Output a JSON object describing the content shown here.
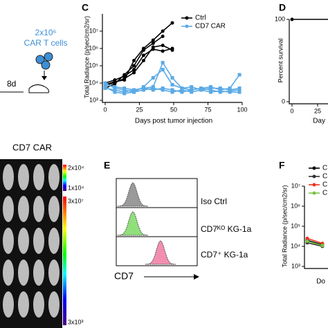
{
  "panel_labels": [
    "C",
    "D",
    "E",
    "F"
  ],
  "schematic": {
    "dose": "2x10⁶",
    "cells": "CAR T cells",
    "days": "8d"
  },
  "imaging": {
    "title": "CD7 CAR",
    "scale_top": [
      "2x10⁴",
      "1x10⁴"
    ],
    "scale_bottom": [
      "3x10⁷",
      "3x10³"
    ]
  },
  "flow": {
    "samples": [
      {
        "name": "Iso Ctrl",
        "color": "#9a9a9a"
      },
      {
        "name": "CD7ᴷᴼ KG-1a",
        "color": "#8fe07a"
      },
      {
        "name": "CD7⁺ KG-1a",
        "color": "#f28fb0"
      }
    ],
    "axis_label": "CD7"
  },
  "chart_data": [
    {
      "type": "line",
      "xlabel": "Days post tumor injection",
      "ylabel": "Total Radiance (p/sec/cm2/sr)",
      "log": true,
      "legend": "upper right",
      "x": [
        0,
        7,
        14,
        21,
        28,
        35,
        42,
        49,
        56,
        63,
        70,
        77,
        84,
        91,
        98
      ],
      "xlim": [
        0,
        100
      ],
      "xticks": [
        0,
        25,
        50,
        75,
        100
      ],
      "ylim": [
        1000,
        100000000
      ],
      "yticks": [
        {
          "value": 1000,
          "label": "10³"
        },
        {
          "value": 10000,
          "label": "10⁴"
        },
        {
          "value": 100000,
          "label": "10⁵"
        },
        {
          "value": 1000000,
          "label": "10⁶"
        },
        {
          "value": 10000000,
          "label": "10⁷"
        }
      ],
      "series": [
        {
          "name": "Ctrl",
          "color": "#000000",
          "values": [
            [
              8000,
              12000,
              15000,
              200000,
              1000000,
              3000000,
              10000000,
              30000000,
              null,
              null,
              null,
              null,
              null,
              null,
              null
            ],
            [
              5000,
              9000,
              30000,
              100000,
              800000,
              2000000,
              5000000,
              null,
              null,
              null,
              null,
              null,
              null,
              null,
              null
            ],
            [
              10000,
              15000,
              25000,
              60000,
              400000,
              900000,
              700000,
              1000000,
              null,
              null,
              null,
              null,
              null,
              null,
              null
            ],
            [
              7000,
              11000,
              18000,
              40000,
              200000,
              1200000,
              1500000,
              800000,
              null,
              null,
              null,
              null,
              null,
              null,
              null
            ]
          ]
        },
        {
          "name": "CD7 CAR",
          "color": "#5aaae6",
          "values": [
            [
              8000,
              6000,
              5000,
              4000,
              5000,
              6000,
              150000,
              20000,
              5000,
              4000,
              5000,
              6000,
              4000,
              5000,
              30000
            ],
            [
              5000,
              4000,
              3000,
              4000,
              5000,
              4000,
              5000,
              4000,
              3000,
              4000,
              5000,
              4000,
              3000,
              3500,
              4000
            ],
            [
              10000,
              5000,
              4000,
              3000,
              6000,
              20000,
              60000,
              8000,
              5000,
              6000,
              4000,
              5000,
              5000,
              4000,
              5000
            ],
            [
              6000,
              3000,
              2500,
              3000,
              4000,
              5000,
              4000,
              3000,
              4000,
              3000,
              4000,
              3000,
              3500,
              3000,
              3000
            ]
          ]
        }
      ]
    },
    {
      "type": "line",
      "xlabel": "Day",
      "ylabel": "Percent survival",
      "x": [
        0,
        100
      ],
      "xlim": [
        0,
        100
      ],
      "xticks": [
        0,
        25
      ],
      "ylim": [
        0,
        100
      ],
      "yticks": [
        0,
        100
      ],
      "series": [
        {
          "color": "#000000",
          "values": [
            100,
            100
          ]
        }
      ]
    },
    {
      "type": "line",
      "xlabel": "Do",
      "ylabel": "Total Radiance (p/sec/cm2/sr)",
      "log": true,
      "legend": "upper left",
      "x": [
        0,
        7
      ],
      "xlim": [
        0,
        50
      ],
      "ylim": [
        1000,
        10000000
      ],
      "yticks": [
        {
          "value": 1000,
          "label": "10³"
        },
        {
          "value": 10000,
          "label": "10⁴"
        },
        {
          "value": 100000,
          "label": "10⁵"
        },
        {
          "value": 1000000,
          "label": "10⁶"
        },
        {
          "value": 10000000,
          "label": "10⁷"
        }
      ],
      "series": [
        {
          "name": "CD",
          "color": "#000000",
          "values": [
            20000,
            12000
          ]
        },
        {
          "name": "CD",
          "color": "#333333",
          "values": [
            15000,
            10000
          ]
        },
        {
          "name": "CD",
          "color": "#e8321e",
          "values": [
            25000,
            14000
          ]
        },
        {
          "name": "CD",
          "color": "#7cc444",
          "values": [
            18000,
            11000
          ]
        }
      ]
    }
  ]
}
